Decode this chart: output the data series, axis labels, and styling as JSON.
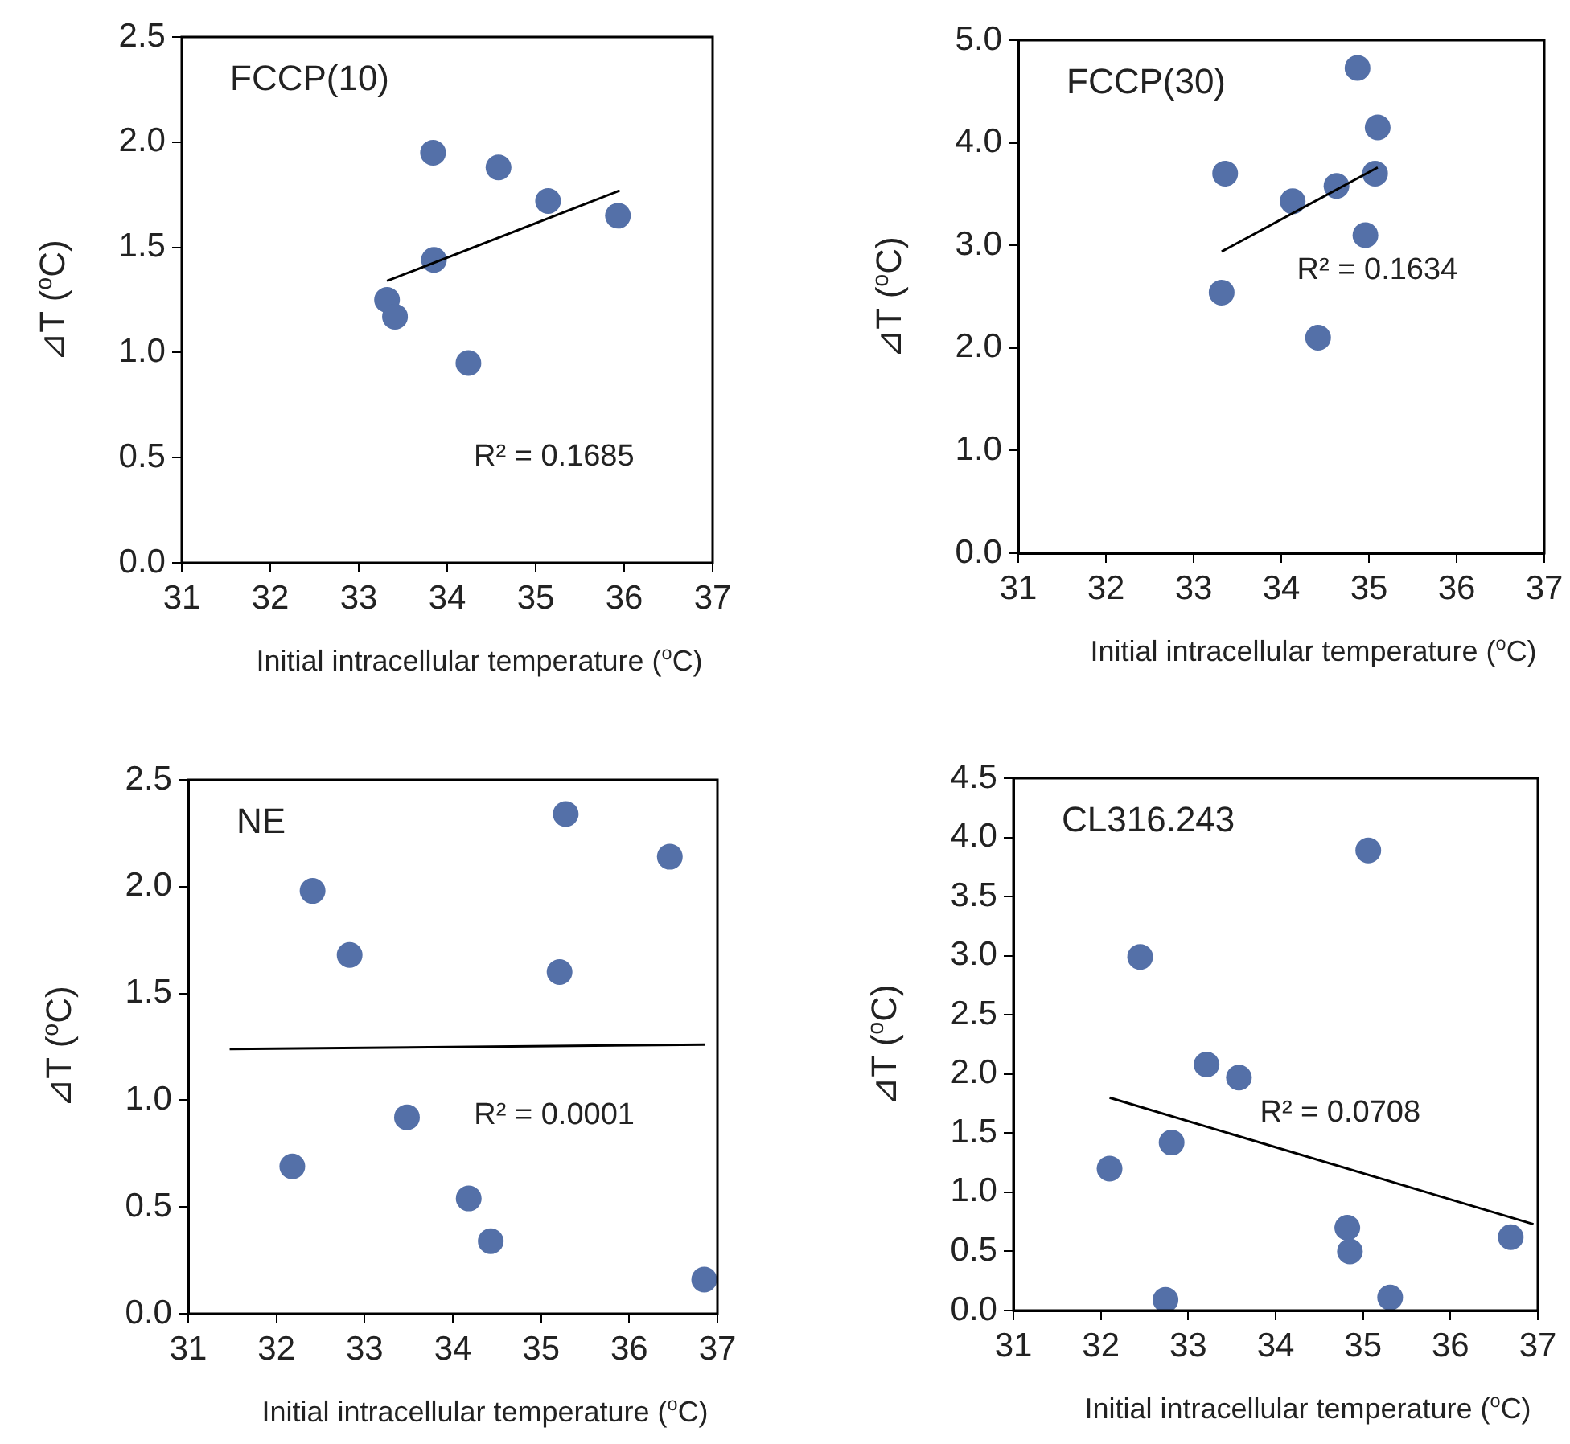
{
  "chart_data": [
    {
      "type": "scatter",
      "title": "FCCP(10)",
      "xlabel": "Initial intracellular temperature ($^{o}$C)",
      "ylabel": "⊿T ($^{o}$C)",
      "annotations": [
        "R² = 0.1685"
      ],
      "xlim": [
        31,
        37
      ],
      "xticks": [
        31,
        32,
        33,
        34,
        35,
        36,
        37
      ],
      "ylim": [
        0,
        2.5
      ],
      "yticks": [
        {
          "value": 0,
          "label": "0.0"
        },
        {
          "value": 0.5,
          "label": "0.5"
        },
        {
          "value": 1,
          "label": "1.0"
        },
        {
          "value": 1.5,
          "label": "1.5"
        },
        {
          "value": 2,
          "label": "2.0"
        },
        {
          "value": 2.5,
          "label": "2.5"
        }
      ],
      "series": [
        {
          "marker": "circle",
          "color": "#5470a8",
          "x": [
            33.84,
            34.58,
            35.14,
            35.93,
            33.85,
            33.32,
            33.41,
            34.24
          ],
          "values": [
            1.95,
            1.88,
            1.72,
            1.65,
            1.44,
            1.25,
            1.17,
            0.95
          ]
        },
        {
          "type": "line",
          "marker": "none",
          "color": "#000000",
          "x": [
            33.32,
            35.95
          ],
          "values": [
            1.34,
            1.77
          ]
        }
      ]
    },
    {
      "type": "scatter",
      "title": "FCCP(30)",
      "xlabel": "Initial intracellular temperature ($^{o}$C)",
      "ylabel": "⊿T ($^{o}$C)",
      "annotations": [
        "R² = 0.1634"
      ],
      "xlim": [
        31,
        37
      ],
      "xticks": [
        31,
        32,
        33,
        34,
        35,
        36,
        37
      ],
      "ylim": [
        0,
        5
      ],
      "yticks": [
        {
          "value": 0,
          "label": "0.0"
        },
        {
          "value": 1,
          "label": "1.0"
        },
        {
          "value": 2,
          "label": "2.0"
        },
        {
          "value": 3,
          "label": "3.0"
        },
        {
          "value": 4,
          "label": "4.0"
        },
        {
          "value": 5,
          "label": "5.0"
        }
      ],
      "series": [
        {
          "marker": "circle",
          "color": "#5470a8",
          "x": [
            34.87,
            35.1,
            33.36,
            35.07,
            34.63,
            34.13,
            34.96,
            33.32,
            34.42
          ],
          "values": [
            4.73,
            4.15,
            3.7,
            3.7,
            3.58,
            3.43,
            3.1,
            2.54,
            2.1
          ]
        },
        {
          "type": "line",
          "marker": "none",
          "color": "#000000",
          "x": [
            33.32,
            35.1
          ],
          "values": [
            2.94,
            3.76
          ]
        }
      ]
    },
    {
      "type": "scatter",
      "title": "NE",
      "xlabel": "Initial intracellular temperature ($^{o}$C)",
      "ylabel": "⊿T ($^{o}$C)",
      "annotations": [
        "R² = 0.0001"
      ],
      "xlim": [
        31,
        37
      ],
      "xticks": [
        31,
        32,
        33,
        34,
        35,
        36,
        37
      ],
      "ylim": [
        0,
        2.5
      ],
      "yticks": [
        {
          "value": 0,
          "label": "0.0"
        },
        {
          "value": 0.5,
          "label": "0.5"
        },
        {
          "value": 1,
          "label": "1.0"
        },
        {
          "value": 1.5,
          "label": "1.5"
        },
        {
          "value": 2,
          "label": "2.0"
        },
        {
          "value": 2.5,
          "label": "2.5"
        }
      ],
      "series": [
        {
          "marker": "circle",
          "color": "#5470a8",
          "x": [
            35.28,
            36.46,
            32.41,
            32.83,
            35.21,
            33.48,
            32.18,
            34.18,
            34.43,
            36.85
          ],
          "values": [
            2.34,
            2.14,
            1.98,
            1.68,
            1.6,
            0.92,
            0.69,
            0.54,
            0.34,
            0.16
          ]
        },
        {
          "type": "line",
          "marker": "none",
          "color": "#000000",
          "x": [
            31.47,
            36.86
          ],
          "values": [
            1.24,
            1.26
          ]
        }
      ]
    },
    {
      "type": "scatter",
      "title": "CL316.243",
      "xlabel": "Initial intracellular temperature ($^{o}$C)",
      "ylabel": "⊿T ($^{o}$C)",
      "annotations": [
        "R² = 0.0708"
      ],
      "xlim": [
        31,
        37
      ],
      "xticks": [
        31,
        32,
        33,
        34,
        35,
        36,
        37
      ],
      "ylim": [
        0,
        4.5
      ],
      "yticks": [
        {
          "value": 0,
          "label": "0.0"
        },
        {
          "value": 0.5,
          "label": "0.5"
        },
        {
          "value": 1,
          "label": "1.0"
        },
        {
          "value": 1.5,
          "label": "1.5"
        },
        {
          "value": 2,
          "label": "2.0"
        },
        {
          "value": 2.5,
          "label": "2.5"
        },
        {
          "value": 3,
          "label": "3.0"
        },
        {
          "value": 3.5,
          "label": "3.5"
        },
        {
          "value": 4,
          "label": "4.0"
        },
        {
          "value": 4.5,
          "label": "4.5"
        }
      ],
      "series": [
        {
          "marker": "circle",
          "color": "#5470a8",
          "x": [
            35.06,
            32.45,
            33.21,
            33.58,
            32.81,
            32.1,
            34.82,
            34.85,
            36.69,
            32.74,
            35.31
          ],
          "values": [
            3.89,
            2.99,
            2.08,
            1.97,
            1.42,
            1.2,
            0.7,
            0.5,
            0.62,
            0.09,
            0.11
          ]
        },
        {
          "type": "line",
          "marker": "none",
          "color": "#000000",
          "x": [
            32.1,
            36.95
          ],
          "values": [
            1.8,
            0.73
          ]
        }
      ]
    }
  ]
}
